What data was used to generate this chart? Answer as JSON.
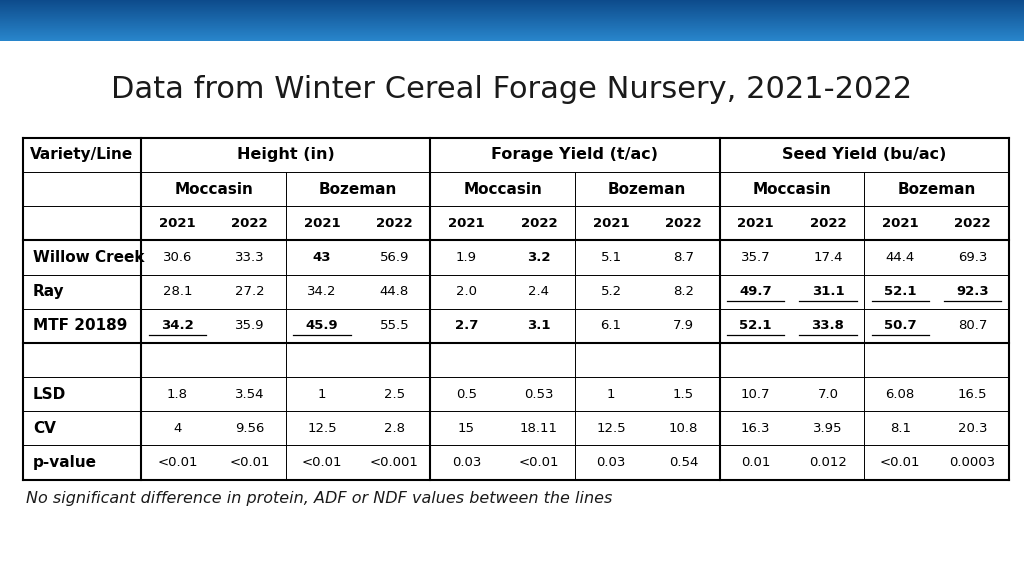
{
  "title": "Data from Winter Cereal Forage Nursery, 2021-2022",
  "footnote": "No significant difference in protein, ADF or NDF values between the lines",
  "background_color": "#ffffff",
  "title_color": "#1a1a1a",
  "footer_bg": "#1565c0",
  "topbar_top": "#0d4a8a",
  "topbar_bottom": "#2986cc",
  "col_groups": [
    "Height (in)",
    "Forage Yield (t/ac)",
    "Seed Yield (bu/ac)"
  ],
  "location_headers": [
    "Moccasin",
    "Bozeman",
    "Moccasin",
    "Bozeman",
    "Moccasin",
    "Bozeman"
  ],
  "year_headers": [
    "2021",
    "2022",
    "2021",
    "2022",
    "2021",
    "2022",
    "2021",
    "2022",
    "2021",
    "2022",
    "2021",
    "2022"
  ],
  "row_labels": [
    "Willow Creek",
    "Ray",
    "MTF 20189",
    "",
    "LSD",
    "CV",
    "p-value"
  ],
  "data": [
    [
      "30.6",
      "33.3",
      "43",
      "56.9",
      "1.9",
      "3.2",
      "5.1",
      "8.7",
      "35.7",
      "17.4",
      "44.4",
      "69.3"
    ],
    [
      "28.1",
      "27.2",
      "34.2",
      "44.8",
      "2.0",
      "2.4",
      "5.2",
      "8.2",
      "49.7",
      "31.1",
      "52.1",
      "92.3"
    ],
    [
      "34.2",
      "35.9",
      "45.9",
      "55.5",
      "2.7",
      "3.1",
      "6.1",
      "7.9",
      "52.1",
      "33.8",
      "50.7",
      "80.7"
    ],
    [
      "",
      "",
      "",
      "",
      "",
      "",
      "",
      "",
      "",
      "",
      "",
      ""
    ],
    [
      "1.8",
      "3.54",
      "1",
      "2.5",
      "0.5",
      "0.53",
      "1",
      "1.5",
      "10.7",
      "7.0",
      "6.08",
      "16.5"
    ],
    [
      "4",
      "9.56",
      "12.5",
      "2.8",
      "15",
      "18.11",
      "12.5",
      "10.8",
      "16.3",
      "3.95",
      "8.1",
      "20.3"
    ],
    [
      "<0.01",
      "<0.01",
      "<0.01",
      "<0.001",
      "0.03",
      "<0.01",
      "0.03",
      "0.54",
      "0.01",
      "0.012",
      "<0.01",
      "0.0003"
    ]
  ],
  "bold_cells": {
    "0": [
      2,
      5
    ],
    "1": [
      8,
      9,
      10,
      11
    ],
    "2": [
      0,
      2,
      4,
      5,
      8,
      9,
      10
    ]
  },
  "underline_cells": {
    "1": [
      8,
      9,
      10,
      11
    ],
    "2": [
      0,
      2,
      8,
      9,
      10
    ]
  },
  "bold_row_labels": [
    0,
    1,
    2,
    4,
    5,
    6
  ]
}
